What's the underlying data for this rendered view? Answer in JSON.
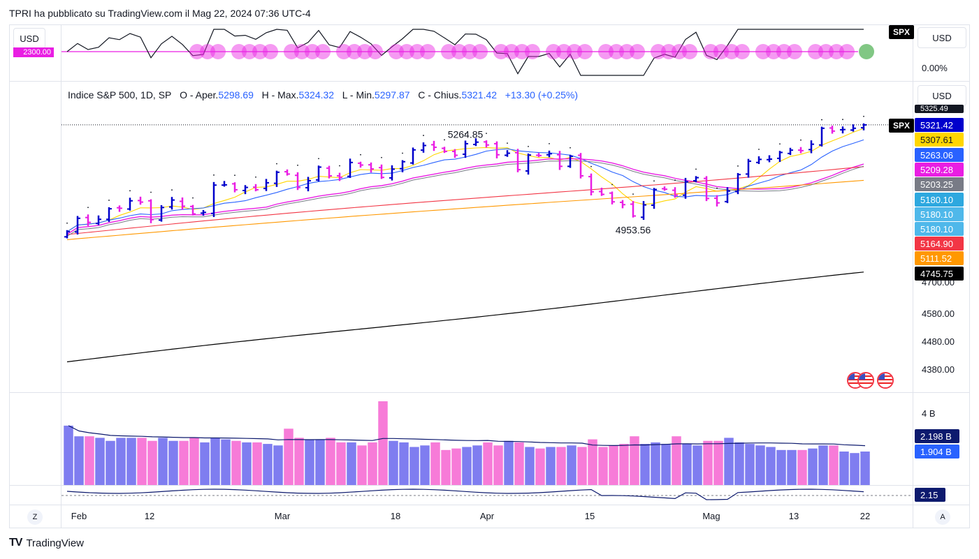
{
  "header": {
    "text": "TPRI ha pubblicato su TradingView.com il Mag 22, 2024 07:36 UTC-4"
  },
  "top_pane": {
    "currency_left": "USD",
    "currency_right": "USD",
    "symbol_tag": "SPX",
    "percent_label": "0.00%",
    "line_label": "2300.00"
  },
  "main_pane": {
    "currency": "USD",
    "legend": {
      "name": "Indice S&P 500, 1D, SP",
      "open_label": "O - Aper.",
      "open": "5298.69",
      "high_label": "H - Max.",
      "high": "5324.32",
      "low_label": "L - Min.",
      "low": "5297.87",
      "close_label": "C - Chius.",
      "close": "5321.42",
      "change": "+13.30 (+0.25%)"
    },
    "annotation_high": "5264.85",
    "annotation_low": "4953.56",
    "symbol_tag": "SPX",
    "price_tags": [
      {
        "value": "5325.49",
        "color": "#131722"
      },
      {
        "value": "5321.42",
        "color": "#0000cc"
      },
      {
        "value": "5307.61",
        "color": "#ffd600"
      },
      {
        "value": "5263.06",
        "color": "#2962ff"
      },
      {
        "value": "5209.28",
        "color": "#e91ee3"
      },
      {
        "value": "5203.25",
        "color": "#787b86"
      },
      {
        "value": "5180.10",
        "color": "#2ea8df"
      },
      {
        "value": "5180.10",
        "color": "#4fb8ea"
      },
      {
        "value": "5180.10",
        "color": "#4fb8ea"
      },
      {
        "value": "5164.90",
        "color": "#f23645"
      },
      {
        "value": "5111.52",
        "color": "#ff9800"
      },
      {
        "value": "4745.75",
        "color": "#000000"
      }
    ],
    "axis_labels": [
      "4700.00",
      "4580.00",
      "4480.00",
      "4380.00"
    ]
  },
  "volume_pane": {
    "axis_label": "4 B",
    "tags": [
      {
        "value": "2.198 B",
        "color": "#0d1a6e"
      },
      {
        "value": "1.904 B",
        "color": "#2962ff"
      }
    ]
  },
  "osc_pane": {
    "tag": "2.15",
    "color": "#0d1a6e"
  },
  "time_axis": {
    "labels": [
      "Feb",
      "12",
      "Mar",
      "18",
      "Apr",
      "15",
      "Mag",
      "13",
      "22"
    ],
    "left_button": "Z",
    "right_button": "A"
  },
  "footer": {
    "brand": "TradingView"
  },
  "chart_data": {
    "type": "ohlc",
    "symbol": "SPX",
    "interval": "1D",
    "ylim": [
      4300,
      5330
    ],
    "days": [
      "2024-02-01",
      "2024-02-02",
      "2024-02-05",
      "2024-02-06",
      "2024-02-07",
      "2024-02-08",
      "2024-02-09",
      "2024-02-12",
      "2024-02-13",
      "2024-02-14",
      "2024-02-15",
      "2024-02-16",
      "2024-02-20",
      "2024-02-21",
      "2024-02-22",
      "2024-02-23",
      "2024-02-26",
      "2024-02-27",
      "2024-02-28",
      "2024-02-29",
      "2024-03-01",
      "2024-03-04",
      "2024-03-05",
      "2024-03-06",
      "2024-03-07",
      "2024-03-08",
      "2024-03-11",
      "2024-03-12",
      "2024-03-13",
      "2024-03-14",
      "2024-03-15",
      "2024-03-18",
      "2024-03-19",
      "2024-03-20",
      "2024-03-21",
      "2024-03-22",
      "2024-03-25",
      "2024-03-26",
      "2024-03-27",
      "2024-03-28",
      "2024-04-01",
      "2024-04-02",
      "2024-04-03",
      "2024-04-04",
      "2024-04-05",
      "2024-04-08",
      "2024-04-09",
      "2024-04-10",
      "2024-04-11",
      "2024-04-12",
      "2024-04-15",
      "2024-04-16",
      "2024-04-17",
      "2024-04-18",
      "2024-04-19",
      "2024-04-22",
      "2024-04-23",
      "2024-04-24",
      "2024-04-25",
      "2024-04-26",
      "2024-04-29",
      "2024-04-30",
      "2024-05-01",
      "2024-05-02",
      "2024-05-03",
      "2024-05-06",
      "2024-05-07",
      "2024-05-08",
      "2024-05-09",
      "2024-05-10",
      "2024-05-13",
      "2024-05-14",
      "2024-05-15",
      "2024-05-16",
      "2024-05-17",
      "2024-05-20",
      "2024-05-21"
    ],
    "close": [
      4906,
      4958,
      4942,
      4954,
      4995,
      4997,
      5026,
      5021,
      4953,
      5000,
      5029,
      5005,
      4975,
      4981,
      5087,
      5088,
      5069,
      5078,
      5069,
      5096,
      5137,
      5130,
      5078,
      5104,
      5157,
      5123,
      5117,
      5175,
      5165,
      5150,
      5117,
      5149,
      5178,
      5224,
      5241,
      5234,
      5218,
      5203,
      5248,
      5254,
      5243,
      5205,
      5211,
      5147,
      5204,
      5202,
      5209,
      5160,
      5199,
      5123,
      5061,
      5051,
      5022,
      5011,
      4967,
      5010,
      5070,
      5071,
      5048,
      5100,
      5116,
      5035,
      5018,
      5064,
      5128,
      5180,
      5187,
      5188,
      5214,
      5223,
      5221,
      5246,
      5308,
      5297,
      5303,
      5308,
      5321
    ],
    "ma_lines": [
      {
        "name": "5307.61",
        "color": "#ffd600"
      },
      {
        "name": "5263.06",
        "color": "#2962ff"
      },
      {
        "name": "5209.28",
        "color": "#e91ee3"
      },
      {
        "name": "5164.90",
        "color": "#f23645"
      },
      {
        "name": "5111.52",
        "color": "#ff9800"
      },
      {
        "name": "4745.75",
        "color": "#000000"
      }
    ],
    "annotations": [
      {
        "text": "5264.85",
        "value": 5264.85
      },
      {
        "text": "4953.56",
        "value": 4953.56
      }
    ],
    "volume": [
      3.9,
      3.2,
      3.2,
      3.1,
      2.9,
      3.1,
      3.1,
      3.1,
      2.9,
      3.1,
      2.9,
      2.9,
      3.1,
      2.8,
      3.1,
      3.0,
      2.9,
      2.8,
      2.8,
      2.7,
      2.6,
      3.7,
      3.1,
      3.0,
      3.0,
      3.1,
      2.8,
      2.8,
      2.6,
      2.8,
      5.5,
      2.9,
      2.8,
      2.5,
      2.6,
      2.8,
      2.3,
      2.4,
      2.5,
      2.6,
      2.8,
      2.6,
      2.9,
      2.8,
      2.5,
      2.4,
      2.5,
      2.5,
      2.6,
      2.5,
      3.0,
      2.5,
      2.6,
      2.7,
      3.2,
      2.7,
      2.8,
      2.7,
      3.2,
      2.7,
      2.6,
      2.9,
      2.9,
      3.1,
      2.8,
      2.7,
      2.6,
      2.5,
      2.3,
      2.3,
      2.3,
      2.4,
      2.6,
      2.6,
      2.2,
      2.1,
      2.2
    ]
  }
}
